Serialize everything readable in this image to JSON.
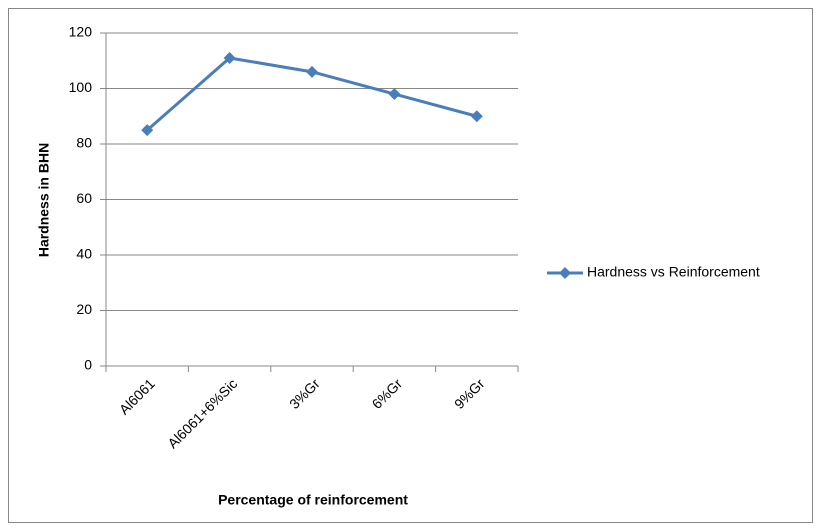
{
  "chart_data": {
    "type": "line",
    "x_label": "Percentage of reinforcement",
    "y_label": "Hardness in BHN",
    "categories": [
      "Al6061",
      "Al6061+6%Sic",
      "3%Gr",
      "6%Gr",
      "9%Gr"
    ],
    "series": [
      {
        "name": "Hardness vs Reinforcement",
        "color": "#4a7ebb",
        "values": [
          85,
          111,
          106,
          98,
          90
        ]
      }
    ],
    "ylim": [
      0,
      120
    ],
    "yticks": [
      0,
      20,
      40,
      60,
      80,
      100,
      120
    ],
    "grid": true,
    "legend": "right"
  }
}
